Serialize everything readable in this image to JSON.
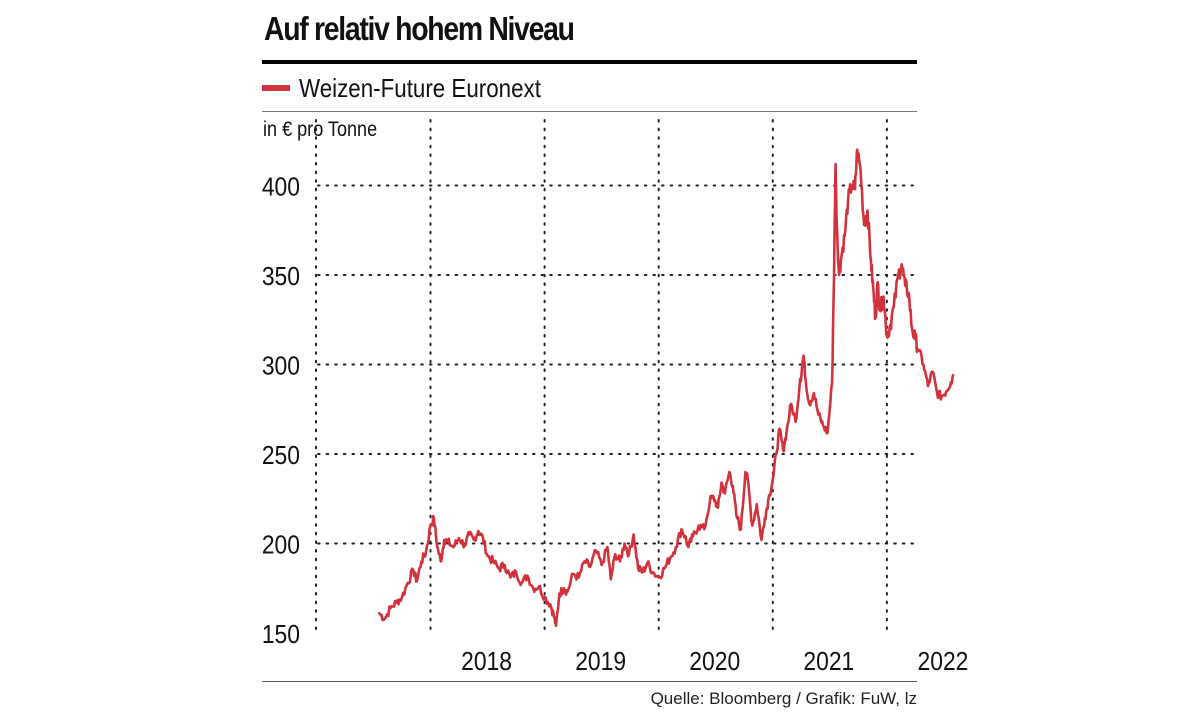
{
  "colors": {
    "series": "#d2323c",
    "grid": "#222222",
    "text": "#111111"
  },
  "chart_data": {
    "type": "line",
    "title": "Auf relativ hohem Niveau",
    "ylabel": "in € pro Tonne",
    "xlabel": "",
    "legend": "top-left",
    "grid": true,
    "ylim": [
      150,
      430
    ],
    "xlim": [
      2017.55,
      2022.65
    ],
    "yticks": [
      150,
      200,
      250,
      300,
      350,
      400
    ],
    "year_labels": [
      "2018",
      "2019",
      "2020",
      "2021",
      "2022"
    ],
    "year_boundaries": [
      2018,
      2019,
      2020,
      2021,
      2022
    ],
    "series": [
      {
        "name": "Weizen-Future Euronext",
        "points": [
          [
            2017.55,
            161
          ],
          [
            2017.6,
            158
          ],
          [
            2017.65,
            164
          ],
          [
            2017.7,
            167
          ],
          [
            2017.75,
            170
          ],
          [
            2017.8,
            178
          ],
          [
            2017.85,
            185
          ],
          [
            2017.88,
            179
          ],
          [
            2017.92,
            190
          ],
          [
            2017.96,
            195
          ],
          [
            2018.0,
            210
          ],
          [
            2018.03,
            214
          ],
          [
            2018.06,
            198
          ],
          [
            2018.09,
            190
          ],
          [
            2018.12,
            202
          ],
          [
            2018.15,
            201
          ],
          [
            2018.2,
            198
          ],
          [
            2018.25,
            203
          ],
          [
            2018.3,
            199
          ],
          [
            2018.34,
            205
          ],
          [
            2018.38,
            202
          ],
          [
            2018.42,
            207
          ],
          [
            2018.46,
            203
          ],
          [
            2018.5,
            193
          ],
          [
            2018.55,
            190
          ],
          [
            2018.6,
            186
          ],
          [
            2018.65,
            188
          ],
          [
            2018.7,
            181
          ],
          [
            2018.75,
            184
          ],
          [
            2018.8,
            178
          ],
          [
            2018.85,
            182
          ],
          [
            2018.9,
            175
          ],
          [
            2018.95,
            176
          ],
          [
            2019.0,
            170
          ],
          [
            2019.05,
            166
          ],
          [
            2019.08,
            160
          ],
          [
            2019.1,
            154
          ],
          [
            2019.13,
            172
          ],
          [
            2019.17,
            175
          ],
          [
            2019.2,
            173
          ],
          [
            2019.25,
            183
          ],
          [
            2019.3,
            181
          ],
          [
            2019.35,
            190
          ],
          [
            2019.4,
            187
          ],
          [
            2019.45,
            196
          ],
          [
            2019.5,
            188
          ],
          [
            2019.55,
            198
          ],
          [
            2019.58,
            180
          ],
          [
            2019.62,
            194
          ],
          [
            2019.66,
            190
          ],
          [
            2019.7,
            200
          ],
          [
            2019.74,
            194
          ],
          [
            2019.78,
            205
          ],
          [
            2019.82,
            186
          ],
          [
            2019.86,
            184
          ],
          [
            2019.9,
            189
          ],
          [
            2019.95,
            184
          ],
          [
            2020.0,
            181
          ],
          [
            2020.05,
            186
          ],
          [
            2020.1,
            192
          ],
          [
            2020.15,
            198
          ],
          [
            2020.2,
            208
          ],
          [
            2020.23,
            204
          ],
          [
            2020.26,
            198
          ],
          [
            2020.3,
            204
          ],
          [
            2020.35,
            210
          ],
          [
            2020.4,
            208
          ],
          [
            2020.45,
            224
          ],
          [
            2020.48,
            226
          ],
          [
            2020.52,
            220
          ],
          [
            2020.55,
            234
          ],
          [
            2020.58,
            228
          ],
          [
            2020.62,
            240
          ],
          [
            2020.65,
            232
          ],
          [
            2020.68,
            216
          ],
          [
            2020.72,
            208
          ],
          [
            2020.76,
            240
          ],
          [
            2020.78,
            236
          ],
          [
            2020.82,
            210
          ],
          [
            2020.86,
            222
          ],
          [
            2020.9,
            202
          ],
          [
            2020.93,
            214
          ],
          [
            2020.96,
            224
          ],
          [
            2021.0,
            236
          ],
          [
            2021.03,
            250
          ],
          [
            2021.06,
            264
          ],
          [
            2021.09,
            252
          ],
          [
            2021.12,
            262
          ],
          [
            2021.16,
            278
          ],
          [
            2021.2,
            268
          ],
          [
            2021.24,
            292
          ],
          [
            2021.27,
            305
          ],
          [
            2021.29,
            290
          ],
          [
            2021.32,
            278
          ],
          [
            2021.36,
            284
          ],
          [
            2021.4,
            272
          ],
          [
            2021.44,
            266
          ],
          [
            2021.48,
            262
          ],
          [
            2021.52,
            290
          ],
          [
            2021.54,
            366
          ],
          [
            2021.55,
            412
          ],
          [
            2021.56,
            380
          ],
          [
            2021.58,
            350
          ],
          [
            2021.6,
            360
          ],
          [
            2021.63,
            372
          ],
          [
            2021.66,
            392
          ],
          [
            2021.69,
            400
          ],
          [
            2021.72,
            398
          ],
          [
            2021.74,
            420
          ],
          [
            2021.77,
            408
          ],
          [
            2021.8,
            378
          ],
          [
            2021.83,
            386
          ],
          [
            2021.86,
            358
          ],
          [
            2021.88,
            342
          ],
          [
            2021.9,
            326
          ],
          [
            2021.92,
            346
          ],
          [
            2021.94,
            330
          ],
          [
            2021.97,
            338
          ],
          [
            2022.0,
            316
          ],
          [
            2022.03,
            322
          ],
          [
            2022.06,
            332
          ],
          [
            2022.1,
            350
          ],
          [
            2022.13,
            356
          ],
          [
            2022.16,
            344
          ],
          [
            2022.19,
            340
          ],
          [
            2022.22,
            320
          ],
          [
            2022.25,
            314
          ],
          [
            2022.28,
            308
          ],
          [
            2022.32,
            300
          ],
          [
            2022.36,
            288
          ],
          [
            2022.4,
            296
          ],
          [
            2022.44,
            284
          ],
          [
            2022.48,
            282
          ],
          [
            2022.52,
            285
          ],
          [
            2022.56,
            290
          ],
          [
            2022.58,
            294
          ]
        ]
      }
    ]
  },
  "footer": {
    "source": "Quelle: Bloomberg / Grafik: FuW, lz"
  }
}
